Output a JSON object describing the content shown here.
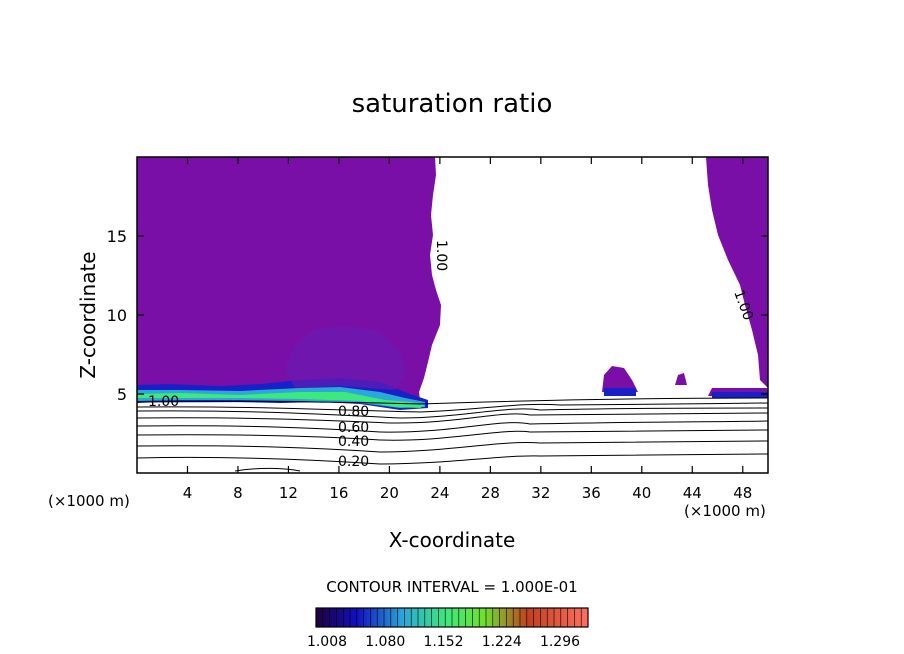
{
  "chart_data": {
    "type": "contour",
    "title": "saturation ratio",
    "xlabel": "X-coordinate",
    "ylabel": "Z-coordinate",
    "x_unit": "(×1000 m)",
    "y_unit": "(×1000 m)",
    "xlim": [
      0,
      50
    ],
    "ylim": [
      0,
      20
    ],
    "x_ticks": [
      "4",
      "8",
      "12",
      "16",
      "20",
      "24",
      "28",
      "32",
      "36",
      "40",
      "44",
      "48"
    ],
    "y_ticks": [
      "5",
      "10",
      "15"
    ],
    "contour_labels": [
      "1.00",
      "0.80",
      "0.60",
      "0.40",
      "0.20",
      "1.00",
      "1.00"
    ],
    "contour_interval_text": "CONTOUR INTERVAL = 1.000E-01",
    "colorbar_labels": [
      "1.008",
      "1.080",
      "1.152",
      "1.224",
      "1.296"
    ],
    "colors": {
      "fill_main": "#7a0fa8",
      "fill_blue": "#1a20c8",
      "fill_cyan": "#2aa8d8",
      "fill_green": "#3ee87a",
      "line": "#000000"
    }
  }
}
